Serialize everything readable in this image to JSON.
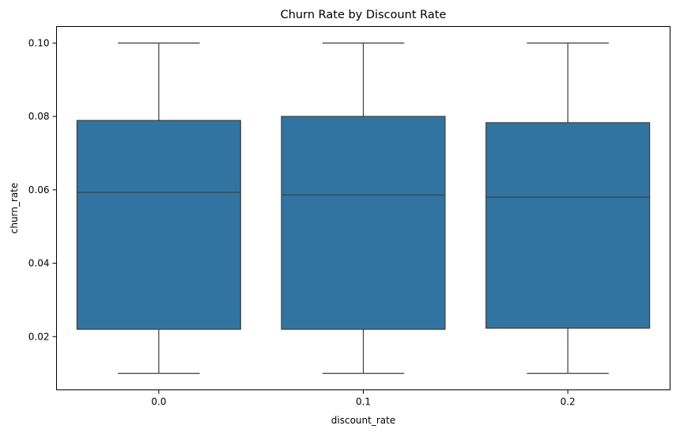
{
  "chart_data": {
    "type": "box",
    "title": "Churn Rate by Discount Rate",
    "xlabel": "discount_rate",
    "ylabel": "churn_rate",
    "categories": [
      "0.0",
      "0.1",
      "0.2"
    ],
    "ylim": [
      0.0055,
      0.1045
    ],
    "yticks": [
      0.02,
      0.04,
      0.06,
      0.08,
      0.1
    ],
    "ytick_labels": [
      "0.02",
      "0.04",
      "0.06",
      "0.08",
      "0.10"
    ],
    "grid": false,
    "legend": "none",
    "box_color": "#3274a1",
    "line_color": "#3d3d3d",
    "boxes": [
      {
        "category": "0.0",
        "whisker_low": 0.01,
        "q1": 0.022,
        "median": 0.0593,
        "q3": 0.0789,
        "whisker_high": 0.1
      },
      {
        "category": "0.1",
        "whisker_low": 0.01,
        "q1": 0.022,
        "median": 0.0586,
        "q3": 0.08,
        "whisker_high": 0.1
      },
      {
        "category": "0.2",
        "whisker_low": 0.01,
        "q1": 0.0223,
        "median": 0.058,
        "q3": 0.0783,
        "whisker_high": 0.1
      }
    ]
  }
}
